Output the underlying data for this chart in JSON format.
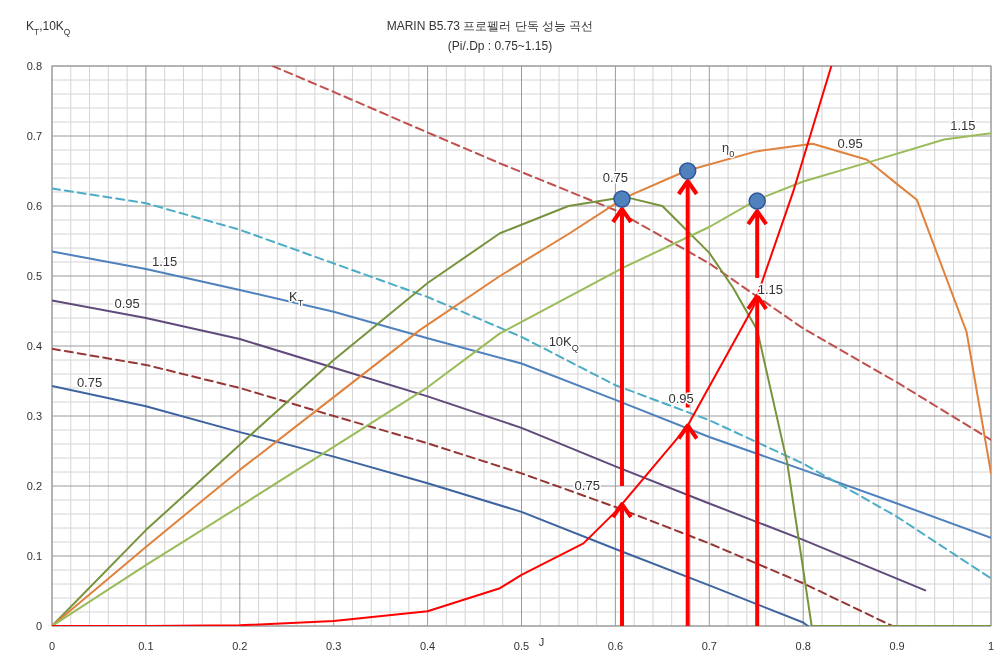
{
  "chart_data": {
    "type": "line",
    "title": "MARIN B5.73 프로펠러 단독 성능 곡선",
    "subtitle": "(Pi/.Dp : 0.75~1.15)",
    "xlabel": "J",
    "ylabel": "K$_{T}$,10K$_{Q}$",
    "xlim": [
      0,
      1
    ],
    "ylim": [
      0,
      0.8
    ],
    "xticks": [
      0,
      0.1,
      0.2,
      0.3,
      0.4,
      0.5,
      0.6,
      0.7,
      0.8,
      0.9,
      1
    ],
    "yticks": [
      0,
      0.1,
      0.2,
      0.3,
      0.4,
      0.5,
      0.6,
      0.7,
      0.8
    ],
    "grid": true,
    "series": [
      {
        "color": "#3e64a0",
        "x": [
          0,
          0.1,
          0.2,
          0.3,
          0.4,
          0.5,
          0.6,
          0.7,
          0.8,
          0.805
        ],
        "values": [
          0.343,
          0.314,
          0.277,
          0.242,
          0.204,
          0.163,
          0.11,
          0.058,
          0.005,
          0
        ]
      },
      {
        "color": "#604a7b",
        "x": [
          0,
          0.1,
          0.2,
          0.3,
          0.4,
          0.5,
          0.6,
          0.7,
          0.8,
          0.93
        ],
        "values": [
          0.465,
          0.44,
          0.41,
          0.369,
          0.328,
          0.283,
          0.228,
          0.175,
          0.123,
          0.051
        ]
      },
      {
        "color": "#4f81bd",
        "x": [
          0,
          0.1,
          0.2,
          0.3,
          0.4,
          0.5,
          0.6,
          0.7,
          0.8,
          0.9,
          1
        ],
        "values": [
          0.535,
          0.51,
          0.48,
          0.449,
          0.411,
          0.375,
          0.323,
          0.27,
          0.223,
          0.175,
          0.126
        ]
      },
      {
        "color": "#953735",
        "line_style": "dashed",
        "x": [
          0,
          0.1,
          0.2,
          0.3,
          0.4,
          0.5,
          0.6,
          0.7,
          0.8,
          0.895
        ],
        "values": [
          0.396,
          0.373,
          0.34,
          0.3,
          0.261,
          0.218,
          0.17,
          0.118,
          0.061,
          0
        ]
      },
      {
        "color": "#4bacc6",
        "line_style": "dashed",
        "x": [
          0,
          0.1,
          0.2,
          0.3,
          0.4,
          0.5,
          0.6,
          0.7,
          0.8,
          0.9,
          1
        ],
        "values": [
          0.625,
          0.604,
          0.566,
          0.518,
          0.47,
          0.413,
          0.344,
          0.294,
          0.232,
          0.156,
          0.068
        ]
      },
      {
        "color": "#c0504d",
        "line_style": "dashed",
        "x": [
          0.235,
          0.3,
          0.4,
          0.477,
          0.6,
          0.7,
          0.8,
          0.9,
          1
        ],
        "values": [
          0.8,
          0.763,
          0.705,
          0.661,
          0.594,
          0.518,
          0.425,
          0.348,
          0.266
        ]
      },
      {
        "color": "#77933c",
        "x": [
          0,
          0.1,
          0.2,
          0.3,
          0.4,
          0.477,
          0.55,
          0.61,
          0.65,
          0.7,
          0.725,
          0.751,
          0.783,
          0.809,
          1
        ],
        "values": [
          0,
          0.137,
          0.259,
          0.38,
          0.49,
          0.561,
          0.6,
          0.613,
          0.6,
          0.533,
          0.484,
          0.423,
          0.233,
          0,
          0
        ]
      },
      {
        "color": "#e0823c",
        "x": [
          0,
          0.1,
          0.2,
          0.3,
          0.392,
          0.477,
          0.55,
          0.61,
          0.675,
          0.75,
          0.81,
          0.868,
          0.903,
          0.921,
          0.974,
          1
        ],
        "values": [
          0,
          0.113,
          0.223,
          0.327,
          0.423,
          0.5,
          0.56,
          0.612,
          0.65,
          0.678,
          0.689,
          0.666,
          0.628,
          0.609,
          0.42,
          0.218
        ]
      },
      {
        "color": "#9bbb59",
        "x": [
          0,
          0.1,
          0.2,
          0.3,
          0.4,
          0.477,
          0.61,
          0.7,
          0.751,
          0.8,
          0.871,
          0.95,
          1
        ],
        "values": [
          0,
          0.087,
          0.171,
          0.256,
          0.341,
          0.418,
          0.513,
          0.57,
          0.609,
          0.635,
          0.663,
          0.695,
          0.704
        ]
      },
      {
        "color": "#ff0000",
        "x": [
          0,
          0.1,
          0.2,
          0.3,
          0.4,
          0.477,
          0.5,
          0.566,
          0.6,
          0.676,
          0.747,
          0.789,
          0.83
        ],
        "values": [
          0,
          0,
          0.001,
          0.007,
          0.021,
          0.054,
          0.073,
          0.118,
          0.163,
          0.284,
          0.456,
          0.619,
          0.8
        ]
      },
      {
        "type": "scatter",
        "marker": "circle",
        "color": "#4f81bd",
        "x": [
          0.607,
          0.677,
          0.751
        ],
        "values": [
          0.61,
          0.65,
          0.607
        ]
      }
    ],
    "annotations": [
      {
        "text": "0.75",
        "x": 0.04,
        "y": 0.331
      },
      {
        "text": "0.95",
        "x": 0.08,
        "y": 0.445
      },
      {
        "text": "1.15",
        "x": 0.12,
        "y": 0.504
      },
      {
        "text": "K$_{T}$",
        "x": 0.26,
        "y": 0.455
      },
      {
        "text": "10K$_{Q}$",
        "x": 0.545,
        "y": 0.39
      },
      {
        "text": "0.75",
        "x": 0.57,
        "y": 0.184
      },
      {
        "text": "0.95",
        "x": 0.67,
        "y": 0.309
      },
      {
        "text": "1.15",
        "x": 0.765,
        "y": 0.465
      },
      {
        "text": "0.75",
        "x": 0.6,
        "y": 0.625
      },
      {
        "text": "η$_{0}$",
        "x": 0.72,
        "y": 0.667
      },
      {
        "text": "0.95",
        "x": 0.85,
        "y": 0.673
      },
      {
        "text": "1.15",
        "x": 0.97,
        "y": 0.699
      }
    ]
  }
}
